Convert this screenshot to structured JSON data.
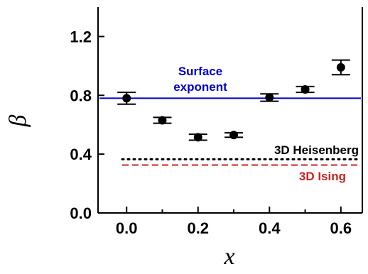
{
  "chart_data": {
    "type": "scatter",
    "xlabel": "x",
    "ylabel": "β",
    "xlim": [
      -0.08,
      0.66
    ],
    "ylim": [
      0.0,
      1.4
    ],
    "x_ticks": [
      "0.0",
      "0.2",
      "0.4",
      "0.6"
    ],
    "x_tick_values": [
      0.0,
      0.2,
      0.4,
      0.6
    ],
    "x_minor_ticks": [
      0.1,
      0.3,
      0.5
    ],
    "y_ticks": [
      "0.0",
      "0.4",
      "0.8",
      "1.2"
    ],
    "y_tick_values": [
      0.0,
      0.4,
      0.8,
      1.2
    ],
    "grid": false,
    "series": [
      {
        "x": [
          0.0,
          0.1,
          0.2,
          0.3,
          0.4,
          0.5,
          0.6
        ],
        "y": [
          0.78,
          0.63,
          0.515,
          0.53,
          0.785,
          0.84,
          0.99
        ],
        "yerr": [
          0.04,
          0.02,
          0.02,
          0.015,
          0.025,
          0.02,
          0.05
        ],
        "color": "#000000"
      }
    ],
    "reference_lines": [
      {
        "label": "Surface exponent",
        "y": 0.78,
        "style": "solid",
        "color": "#0000cc"
      },
      {
        "label": "3D Heisenberg",
        "y": 0.365,
        "style": "dotted",
        "color": "#000000"
      },
      {
        "label": "3D Ising",
        "y": 0.326,
        "style": "dashed",
        "color": "#cc2222"
      }
    ],
    "annotations": {
      "surface_line1": "Surface",
      "surface_line2": "exponent",
      "heisenberg": "3D Heisenberg",
      "ising": "3D Ising"
    }
  }
}
